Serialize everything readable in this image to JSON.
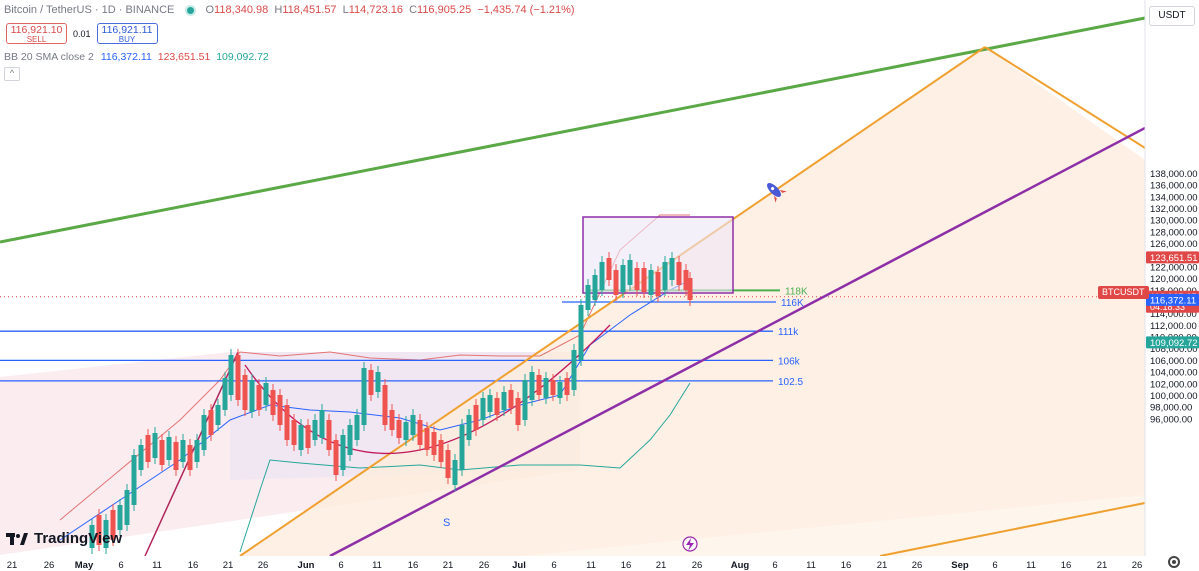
{
  "header": {
    "title": "Bitcoin / TetherUS · 1D · BINANCE",
    "ohlc": [
      {
        "k": "O",
        "v": "118,340.98"
      },
      {
        "k": "H",
        "v": "118,451.57"
      },
      {
        "k": "L",
        "v": "114,723.16"
      },
      {
        "k": "C",
        "v": "116,905.25"
      }
    ],
    "change": "−1,435.74 (−1.21%)"
  },
  "trade": {
    "sell_price": "116,921.10",
    "sell_label": "SELL",
    "spread": "0.01",
    "buy_price": "116,921.11",
    "buy_label": "BUY"
  },
  "indicator": {
    "label": "BB 20 SMA close 2",
    "basis": "116,372.11",
    "upper": "123,651.51",
    "lower": "109,092.72"
  },
  "axis": {
    "currency": "USDT",
    "ticks": [
      {
        "p": 138000,
        "t": "138,000.00"
      },
      {
        "p": 136000,
        "t": "136,000.00"
      },
      {
        "p": 134000,
        "t": "134,000.00"
      },
      {
        "p": 132000,
        "t": "132,000.00"
      },
      {
        "p": 130000,
        "t": "130,000.00"
      },
      {
        "p": 128000,
        "t": "128,000.00"
      },
      {
        "p": 126000,
        "t": "126,000.00"
      },
      {
        "p": 122000,
        "t": "122,000.00"
      },
      {
        "p": 120000,
        "t": "120,000.00"
      },
      {
        "p": 118000,
        "t": "118,000.00"
      },
      {
        "p": 114000,
        "t": "114,000.00"
      },
      {
        "p": 112000,
        "t": "112,000.00"
      },
      {
        "p": 110000,
        "t": "110,000.00"
      },
      {
        "p": 108000,
        "t": "108,000.00"
      },
      {
        "p": 106000,
        "t": "106,000.00"
      },
      {
        "p": 104000,
        "t": "104,000.00"
      },
      {
        "p": 102000,
        "t": "102,000.00"
      },
      {
        "p": 100000,
        "t": "100,000.00"
      },
      {
        "p": 98000,
        "t": "98,000.00"
      },
      {
        "p": 96000,
        "t": "96,000.00"
      }
    ],
    "tags": {
      "upper": {
        "p": 123651.51,
        "t": "123,651.51",
        "color": "#e04848"
      },
      "price": {
        "p": 116905.25,
        "t": "116,905.25",
        "sub": "04:18:33",
        "color": "#e04848"
      },
      "basis": {
        "p": 116372.11,
        "t": "116,372.11",
        "color": "#2962ff"
      },
      "lower": {
        "p": 109092.72,
        "t": "109,092.72",
        "color": "#26a69a"
      }
    },
    "symbol": "BTCUSDT",
    "dates": [
      {
        "x": 12,
        "t": "21"
      },
      {
        "x": 49,
        "t": "26"
      },
      {
        "x": 84,
        "t": "May",
        "bold": true
      },
      {
        "x": 121,
        "t": "6"
      },
      {
        "x": 157,
        "t": "11"
      },
      {
        "x": 193,
        "t": "16"
      },
      {
        "x": 228,
        "t": "21"
      },
      {
        "x": 263,
        "t": "26"
      },
      {
        "x": 306,
        "t": "Jun",
        "bold": true
      },
      {
        "x": 341,
        "t": "6"
      },
      {
        "x": 377,
        "t": "11"
      },
      {
        "x": 413,
        "t": "16"
      },
      {
        "x": 448,
        "t": "21"
      },
      {
        "x": 484,
        "t": "26"
      },
      {
        "x": 519,
        "t": "Jul",
        "bold": true
      },
      {
        "x": 554,
        "t": "6"
      },
      {
        "x": 591,
        "t": "11"
      },
      {
        "x": 626,
        "t": "16"
      },
      {
        "x": 661,
        "t": "21"
      },
      {
        "x": 697,
        "t": "26"
      },
      {
        "x": 740,
        "t": "Aug",
        "bold": true
      },
      {
        "x": 775,
        "t": "6"
      },
      {
        "x": 811,
        "t": "11"
      },
      {
        "x": 846,
        "t": "16"
      },
      {
        "x": 882,
        "t": "21"
      },
      {
        "x": 917,
        "t": "26"
      },
      {
        "x": 960,
        "t": "Sep",
        "bold": true
      },
      {
        "x": 995,
        "t": "6"
      },
      {
        "x": 1031,
        "t": "11"
      },
      {
        "x": 1066,
        "t": "16"
      },
      {
        "x": 1102,
        "t": "21"
      },
      {
        "x": 1137,
        "t": "26"
      }
    ]
  },
  "levels": [
    {
      "label": "118K",
      "color": "#4caf50"
    },
    {
      "label": "116K",
      "color": "#2962ff"
    },
    {
      "label": "111k",
      "color": "#2962ff"
    },
    {
      "label": "106k",
      "color": "#2962ff"
    },
    {
      "label": "102.5",
      "color": "#2962ff"
    }
  ],
  "annotation_s": "S",
  "colors": {
    "up": "#26a69a",
    "down": "#ef5350",
    "trend_green": "#5aa846",
    "trend_orange": "#f0a030",
    "trend_purple": "#8e2fa8"
  },
  "brand": "TradingView"
}
